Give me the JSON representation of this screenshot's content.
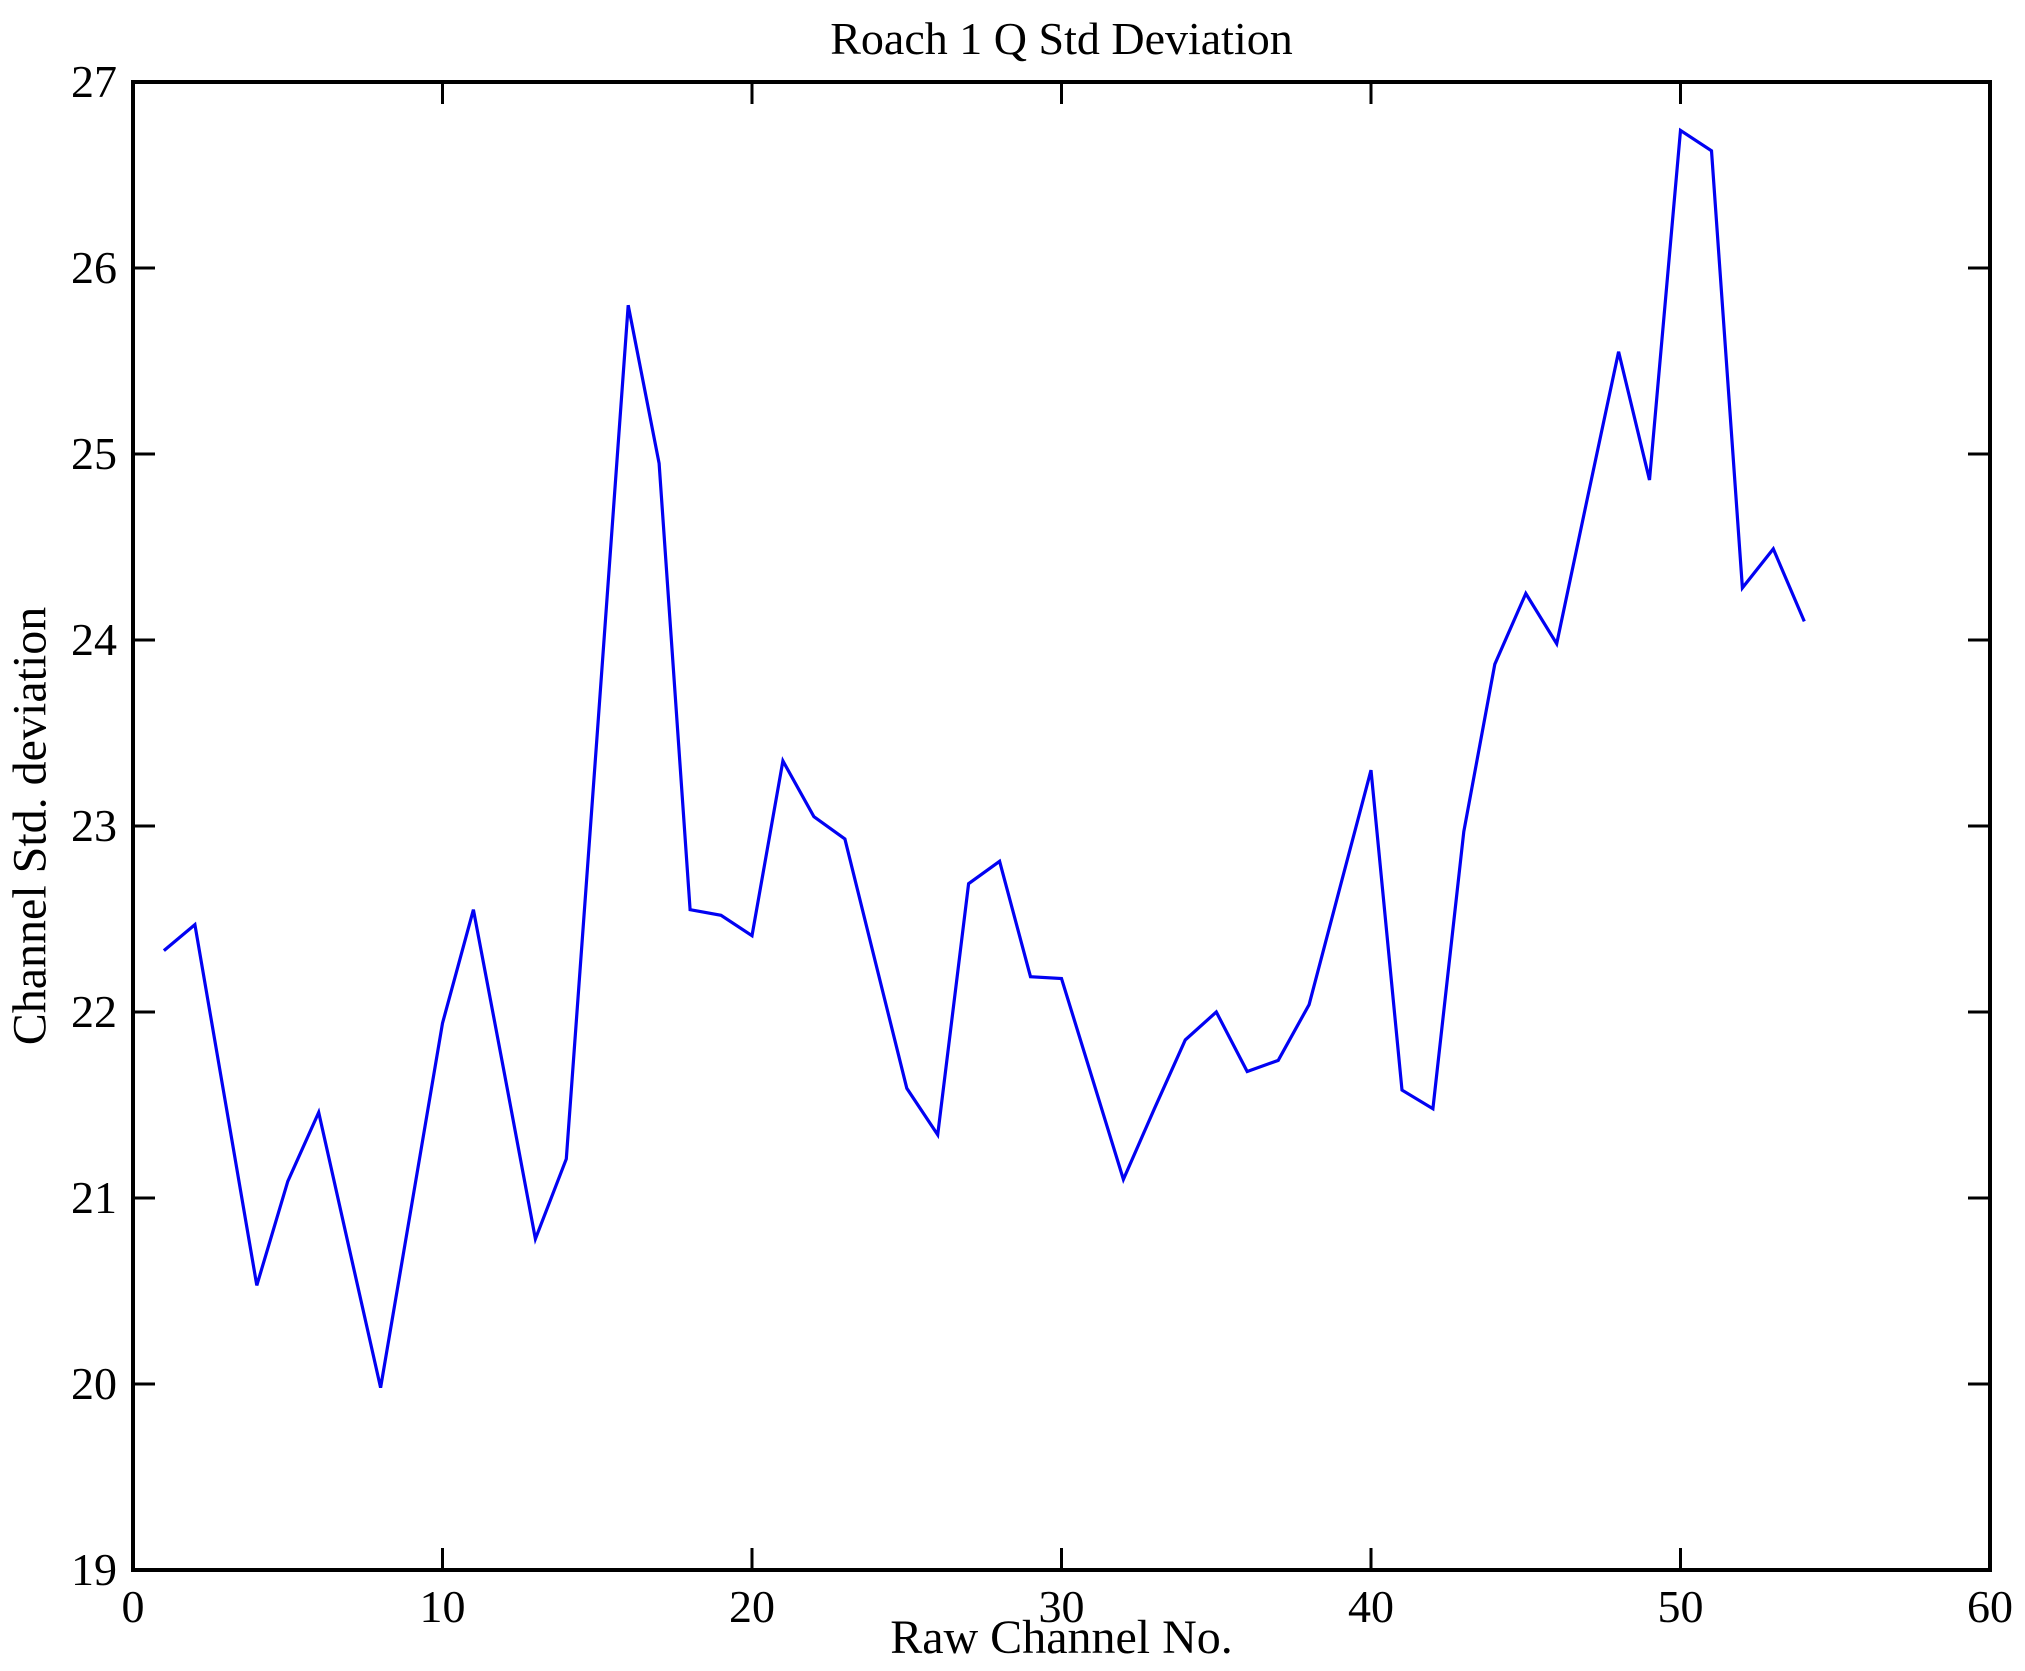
{
  "chart_data": {
    "type": "line",
    "title": "Roach 1 Q Std Deviation",
    "xlabel": "Raw Channel No.",
    "ylabel": "Channel Std. deviation",
    "xlim": [
      0,
      60
    ],
    "ylim": [
      19,
      27
    ],
    "xticks": [
      0,
      10,
      20,
      30,
      40,
      50,
      60
    ],
    "yticks": [
      19,
      20,
      21,
      22,
      23,
      24,
      25,
      26,
      27
    ],
    "grid": false,
    "legend": null,
    "line_color": "#0202F2",
    "axis_color": "#000000",
    "background": "#FFFFFF",
    "series": [
      {
        "name": "Channel Std. deviation",
        "x": [
          1,
          2,
          3,
          4,
          5,
          6,
          7,
          8,
          9,
          10,
          11,
          12,
          13,
          14,
          15,
          16,
          17,
          18,
          19,
          20,
          21,
          22,
          23,
          24,
          25,
          26,
          27,
          28,
          29,
          30,
          31,
          32,
          33,
          34,
          35,
          36,
          37,
          38,
          39,
          40,
          41,
          42,
          43,
          44,
          45,
          46,
          47,
          48,
          49,
          50,
          51,
          52,
          53,
          54
        ],
        "values": [
          22.33,
          22.47,
          21.5,
          20.53,
          21.09,
          21.46,
          20.72,
          19.98,
          20.96,
          21.94,
          22.55,
          21.67,
          20.78,
          21.21,
          23.5,
          25.8,
          24.95,
          22.55,
          22.52,
          22.41,
          23.35,
          23.05,
          22.93,
          22.26,
          21.59,
          21.34,
          22.69,
          22.81,
          22.19,
          22.18,
          21.64,
          21.1,
          21.48,
          21.85,
          22.0,
          21.68,
          21.74,
          22.04,
          22.67,
          23.3,
          21.58,
          21.48,
          22.97,
          23.87,
          24.25,
          23.98,
          24.77,
          25.55,
          24.86,
          26.74,
          26.63,
          24.28,
          24.49,
          24.1
        ]
      }
    ]
  }
}
